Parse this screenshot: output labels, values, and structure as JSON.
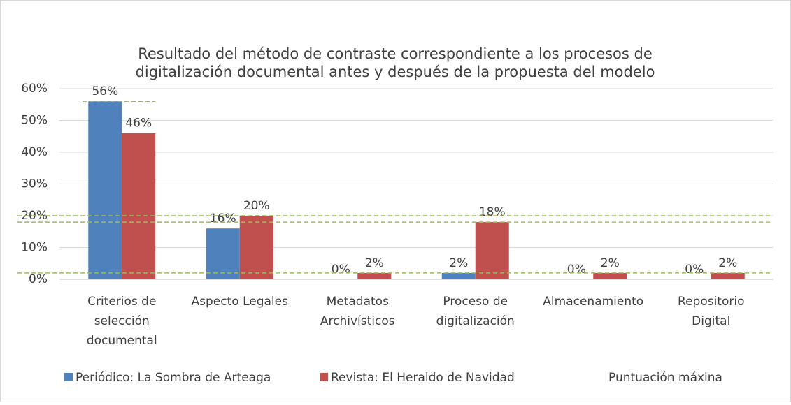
{
  "chart_data": {
    "type": "bar",
    "title": "Resultado del método de contraste correspondiente a los procesos de digitalización documental antes y después de la propuesta del modelo",
    "categories": [
      "Criterios de selección documental",
      "Aspecto Legales",
      "Metadatos Archivísticos",
      "Proceso de digitalización",
      "Almacenamiento",
      "Repositorio Digital"
    ],
    "series": [
      {
        "name": "Periódico: La Sombra de Arteaga",
        "color": "#4f81bd",
        "values": [
          56,
          16,
          0,
          2,
          0,
          0
        ],
        "value_labels": [
          "56%",
          "16%",
          "0%",
          "2%",
          "0%",
          "0%"
        ]
      },
      {
        "name": "Revista: El Heraldo de Navidad",
        "color": "#c0504d",
        "values": [
          46,
          20,
          2,
          18,
          2,
          2
        ],
        "value_labels": [
          "46%",
          "20%",
          "2%",
          "18%",
          "2%",
          "2%"
        ]
      }
    ],
    "reference_lines": {
      "name": "Puntuación máxina",
      "color": "#9bbb59",
      "values": [
        56,
        20,
        18,
        2
      ]
    },
    "ylim": [
      0,
      60
    ],
    "yticks": [
      {
        "value": 0,
        "label": "0%"
      },
      {
        "value": 10,
        "label": "10%"
      },
      {
        "value": 20,
        "label": "20%"
      },
      {
        "value": 30,
        "label": "30%"
      },
      {
        "value": 40,
        "label": "40%"
      },
      {
        "value": 50,
        "label": "50%"
      },
      {
        "value": 60,
        "label": "60%"
      }
    ],
    "grid": true
  }
}
